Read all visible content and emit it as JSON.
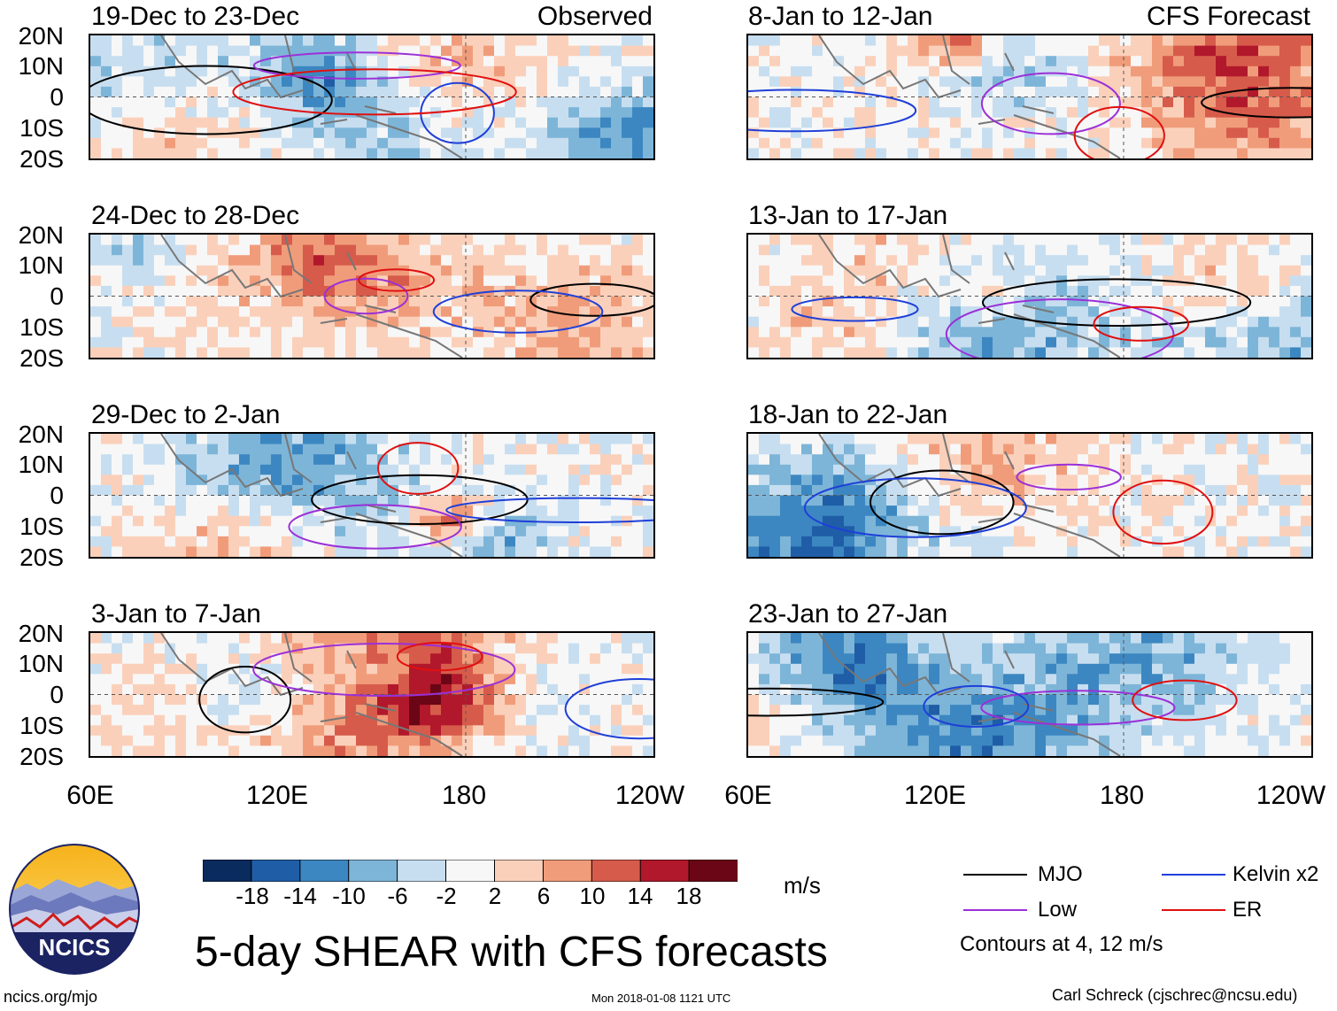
{
  "header": {
    "observed_label": "Observed",
    "forecast_label": "CFS Forecast"
  },
  "panels": [
    {
      "title": "19-Dec to 23-Dec",
      "kind": "observed"
    },
    {
      "title": "24-Dec to 28-Dec",
      "kind": "observed"
    },
    {
      "title": "29-Dec to 2-Jan",
      "kind": "observed"
    },
    {
      "title": "3-Jan to 7-Jan",
      "kind": "observed"
    },
    {
      "title": "8-Jan to 12-Jan",
      "kind": "forecast"
    },
    {
      "title": "13-Jan to 17-Jan",
      "kind": "forecast"
    },
    {
      "title": "18-Jan to 22-Jan",
      "kind": "forecast"
    },
    {
      "title": "23-Jan to 27-Jan",
      "kind": "forecast"
    }
  ],
  "axes": {
    "lat_labels": [
      "20N",
      "10N",
      "0",
      "10S",
      "20S"
    ],
    "lon_labels": [
      "60E",
      "120E",
      "180",
      "120W"
    ]
  },
  "colorbar": {
    "ticks": [
      "-18",
      "-14",
      "-10",
      "-6",
      "-2",
      "2",
      "6",
      "10",
      "14",
      "18"
    ],
    "colors": [
      "#0a2b5e",
      "#1f5ea6",
      "#3c87c1",
      "#7db5d8",
      "#c7def0",
      "#f7f7f7",
      "#fbd0ba",
      "#f09c7a",
      "#d75b4b",
      "#b2182b",
      "#6a0616"
    ],
    "units": "m/s"
  },
  "legend": {
    "items": [
      {
        "label": "MJO",
        "color": "#000000"
      },
      {
        "label": "Low",
        "color": "#9b30d8"
      },
      {
        "label": "Kelvin x2",
        "color": "#1f3fd8"
      },
      {
        "label": "ER",
        "color": "#e01010"
      }
    ],
    "contour_note": "Contours at 4, 12 m/s"
  },
  "title": "5-day SHEAR with CFS forecasts",
  "logo": {
    "text": "NCICS"
  },
  "footer": {
    "url": "ncics.org/mjo",
    "timestamp": "Mon 2018-01-08 1121 UTC",
    "credit": "Carl Schreck (cjschrec@ncsu.edu)"
  }
}
